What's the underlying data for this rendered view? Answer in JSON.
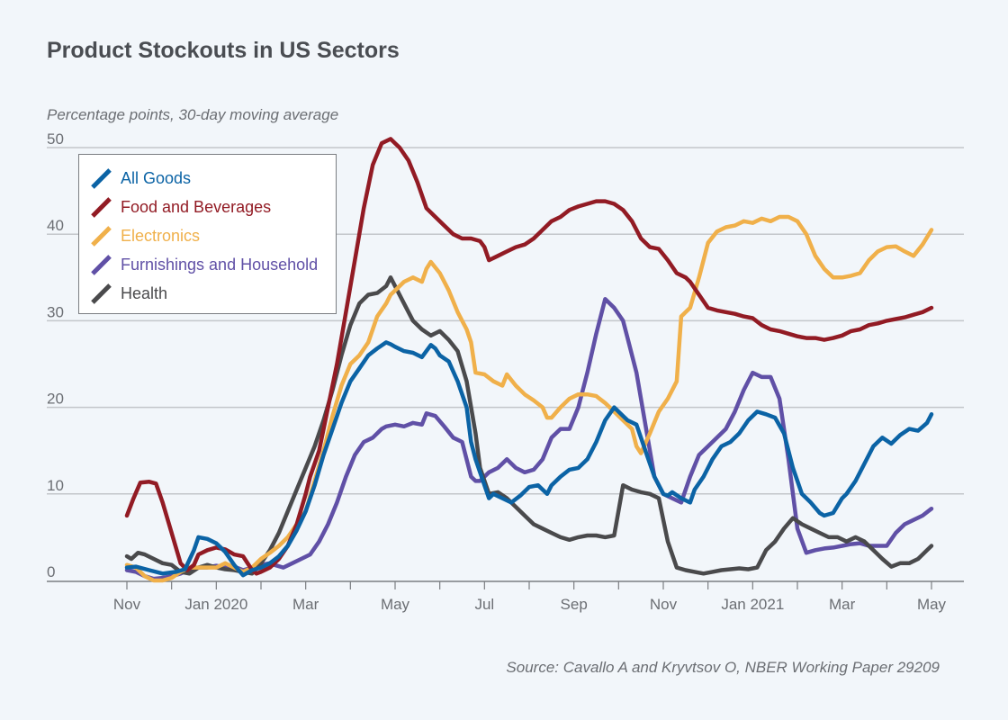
{
  "chart_data": {
    "type": "line",
    "title": "Product Stockouts in US Sectors",
    "subtitle": "Percentage points, 30-day moving average",
    "source": "Source: Cavallo A and Kryvtsov O, NBER Working Paper 29209",
    "xlabel": "",
    "ylabel": "Percentage points",
    "x_unit": "months since Nov 2019",
    "xlim": [
      0,
      18
    ],
    "ylim": [
      0,
      50
    ],
    "yticks": [
      0,
      10,
      20,
      30,
      40,
      50
    ],
    "xtick_labels": [
      {
        "x": 0,
        "label": "Nov"
      },
      {
        "x": 2,
        "label": "Jan 2020"
      },
      {
        "x": 4,
        "label": "Mar"
      },
      {
        "x": 6,
        "label": "May"
      },
      {
        "x": 8,
        "label": "Jul"
      },
      {
        "x": 10,
        "label": "Sep"
      },
      {
        "x": 12,
        "label": "Nov"
      },
      {
        "x": 14,
        "label": "Jan 2021"
      },
      {
        "x": 16,
        "label": "Mar"
      },
      {
        "x": 18,
        "label": "May"
      }
    ],
    "grid": true,
    "legend_position": "top-left",
    "series": [
      {
        "name": "All Goods",
        "color": "#0b63a5",
        "x": [
          0,
          0.2,
          0.5,
          0.8,
          1.1,
          1.3,
          1.5,
          1.6,
          1.8,
          2.0,
          2.2,
          2.4,
          2.6,
          2.7,
          2.8,
          3.0,
          3.2,
          3.4,
          3.6,
          3.8,
          4.0,
          4.2,
          4.4,
          4.6,
          4.8,
          5.0,
          5.2,
          5.4,
          5.6,
          5.8,
          5.9,
          6.0,
          6.2,
          6.4,
          6.6,
          6.8,
          6.9,
          7.0,
          7.2,
          7.4,
          7.6,
          7.7,
          7.8,
          8.0,
          8.1,
          8.2,
          8.4,
          8.6,
          8.8,
          9.0,
          9.2,
          9.4,
          9.5,
          9.7,
          9.9,
          10.1,
          10.3,
          10.5,
          10.7,
          10.9,
          11.1,
          11.2,
          11.4,
          11.6,
          11.8,
          12.0,
          12.1,
          12.2,
          12.4,
          12.6,
          12.7,
          12.9,
          13.1,
          13.3,
          13.5,
          13.7,
          13.9,
          14.1,
          14.3,
          14.5,
          14.7,
          14.9,
          15.1,
          15.3,
          15.5,
          15.6,
          15.8,
          16.0,
          16.1,
          16.3,
          16.5,
          16.7,
          16.9,
          17.1,
          17.3,
          17.5,
          17.7,
          17.9,
          18.0
        ],
        "values": [
          1.5,
          1.6,
          1.2,
          0.8,
          1.0,
          1.3,
          3.5,
          5.0,
          4.8,
          4.3,
          3.3,
          1.8,
          0.6,
          0.9,
          1.2,
          1.5,
          2.0,
          2.8,
          4.0,
          5.8,
          8.0,
          11.0,
          14.5,
          17.5,
          20.5,
          23.0,
          24.5,
          26.0,
          26.8,
          27.5,
          27.3,
          27.0,
          26.5,
          26.3,
          25.8,
          27.2,
          26.8,
          26.0,
          25.3,
          23.0,
          20.0,
          16.0,
          14.0,
          11.0,
          9.5,
          10.0,
          9.5,
          9.0,
          9.8,
          10.8,
          11.0,
          10.0,
          11.0,
          12.0,
          12.8,
          13.0,
          14.0,
          16.0,
          18.5,
          20.0,
          19.0,
          18.5,
          18.0,
          15.0,
          12.0,
          10.0,
          9.8,
          10.2,
          9.5,
          9.0,
          10.5,
          12.0,
          14.0,
          15.5,
          16.0,
          17.0,
          18.5,
          19.5,
          19.2,
          18.8,
          17.0,
          13.0,
          10.0,
          9.0,
          7.8,
          7.5,
          7.8,
          9.5,
          10.0,
          11.5,
          13.5,
          15.5,
          16.5,
          15.8,
          16.8,
          17.5,
          17.3,
          18.2,
          19.2
        ]
      },
      {
        "name": "Food and Beverages",
        "color": "#921b24",
        "x": [
          0,
          0.15,
          0.3,
          0.5,
          0.65,
          0.8,
          1.0,
          1.2,
          1.35,
          1.5,
          1.6,
          1.8,
          2.0,
          2.2,
          2.4,
          2.6,
          2.8,
          2.9,
          3.0,
          3.2,
          3.4,
          3.6,
          3.8,
          4.0,
          4.1,
          4.3,
          4.5,
          4.7,
          4.9,
          5.1,
          5.3,
          5.5,
          5.7,
          5.9,
          6.0,
          6.1,
          6.3,
          6.5,
          6.7,
          6.9,
          7.1,
          7.3,
          7.5,
          7.7,
          7.9,
          8.0,
          8.1,
          8.3,
          8.5,
          8.7,
          8.9,
          9.1,
          9.3,
          9.5,
          9.7,
          9.9,
          10.1,
          10.3,
          10.5,
          10.7,
          10.9,
          11.1,
          11.3,
          11.5,
          11.7,
          11.9,
          12.1,
          12.3,
          12.5,
          12.6,
          12.8,
          13.0,
          13.2,
          13.4,
          13.6,
          13.8,
          14.0,
          14.2,
          14.4,
          14.6,
          14.8,
          15.0,
          15.2,
          15.4,
          15.6,
          15.8,
          16.0,
          16.2,
          16.4,
          16.6,
          16.8,
          17.0,
          17.2,
          17.4,
          17.6,
          17.8,
          18.0
        ],
        "values": [
          7.5,
          9.5,
          11.3,
          11.4,
          11.2,
          9.0,
          5.5,
          2.0,
          1.2,
          1.8,
          3.0,
          3.5,
          3.8,
          3.6,
          3.0,
          2.8,
          1.2,
          0.8,
          1.0,
          1.5,
          2.5,
          4.0,
          6.5,
          10.0,
          12.0,
          15.0,
          20.0,
          25.0,
          31.0,
          37.0,
          43.0,
          48.0,
          50.5,
          51.0,
          50.5,
          50.0,
          48.5,
          46.0,
          43.0,
          42.0,
          41.0,
          40.0,
          39.5,
          39.5,
          39.2,
          38.5,
          37.0,
          37.5,
          38.0,
          38.5,
          38.8,
          39.5,
          40.5,
          41.5,
          42.0,
          42.8,
          43.2,
          43.5,
          43.8,
          43.8,
          43.5,
          42.8,
          41.5,
          39.5,
          38.5,
          38.3,
          37.0,
          35.5,
          35.0,
          34.5,
          33.0,
          31.5,
          31.2,
          31.0,
          30.8,
          30.5,
          30.3,
          29.5,
          29.0,
          28.8,
          28.5,
          28.2,
          28.0,
          28.0,
          27.8,
          28.0,
          28.3,
          28.8,
          29.0,
          29.5,
          29.7,
          30.0,
          30.2,
          30.4,
          30.7,
          31.0,
          31.5
        ]
      },
      {
        "name": "Electronics",
        "color": "#f0b04a",
        "x": [
          0,
          0.2,
          0.4,
          0.6,
          0.8,
          1.0,
          1.2,
          1.4,
          1.6,
          1.8,
          2.0,
          2.2,
          2.4,
          2.6,
          2.8,
          3.0,
          3.2,
          3.4,
          3.6,
          3.8,
          4.0,
          4.2,
          4.4,
          4.6,
          4.8,
          5.0,
          5.2,
          5.4,
          5.6,
          5.8,
          5.9,
          6.0,
          6.2,
          6.4,
          6.6,
          6.7,
          6.8,
          7.0,
          7.2,
          7.4,
          7.6,
          7.7,
          7.8,
          8.0,
          8.2,
          8.4,
          8.5,
          8.7,
          8.9,
          9.1,
          9.3,
          9.4,
          9.5,
          9.7,
          9.9,
          10.1,
          10.3,
          10.5,
          10.7,
          10.9,
          11.1,
          11.3,
          11.4,
          11.5,
          11.7,
          11.9,
          12.1,
          12.3,
          12.4,
          12.6,
          12.8,
          13.0,
          13.2,
          13.4,
          13.6,
          13.8,
          14.0,
          14.2,
          14.4,
          14.6,
          14.8,
          15.0,
          15.2,
          15.4,
          15.6,
          15.8,
          16.0,
          16.2,
          16.4,
          16.6,
          16.8,
          17.0,
          17.2,
          17.4,
          17.6,
          17.8,
          18.0
        ],
        "values": [
          1.8,
          1.5,
          0.5,
          0.0,
          0.0,
          0.3,
          1.0,
          1.5,
          1.5,
          1.5,
          1.5,
          2.0,
          1.5,
          1.0,
          1.5,
          2.5,
          3.2,
          4.0,
          5.0,
          6.5,
          8.0,
          11.5,
          15.0,
          19.0,
          22.5,
          25.0,
          26.0,
          27.5,
          30.5,
          32.0,
          33.0,
          33.5,
          34.5,
          35.0,
          34.5,
          36.0,
          36.8,
          35.5,
          33.5,
          31.0,
          29.0,
          27.5,
          24.0,
          23.8,
          23.0,
          22.5,
          23.8,
          22.5,
          21.5,
          20.8,
          20.0,
          18.8,
          18.8,
          20.0,
          21.0,
          21.5,
          21.5,
          21.3,
          20.5,
          19.5,
          18.5,
          17.5,
          15.5,
          14.7,
          17.0,
          19.5,
          21.0,
          23.0,
          30.5,
          31.5,
          35.0,
          39.0,
          40.3,
          40.8,
          41.0,
          41.5,
          41.3,
          41.8,
          41.5,
          42.0,
          42.0,
          41.5,
          40.0,
          37.5,
          36.0,
          35.0,
          35.0,
          35.2,
          35.5,
          37.0,
          38.0,
          38.5,
          38.6,
          38.0,
          37.5,
          38.8,
          40.5
        ]
      },
      {
        "name": "Furnishings and Household",
        "color": "#6050a6",
        "x": [
          0,
          0.2,
          0.4,
          0.6,
          0.8,
          1.0,
          1.2,
          1.4,
          1.6,
          1.8,
          2.0,
          2.2,
          2.4,
          2.6,
          2.8,
          3.0,
          3.2,
          3.3,
          3.5,
          3.7,
          3.9,
          4.1,
          4.3,
          4.5,
          4.7,
          4.9,
          5.1,
          5.3,
          5.5,
          5.7,
          5.8,
          6.0,
          6.2,
          6.4,
          6.6,
          6.7,
          6.9,
          7.1,
          7.3,
          7.5,
          7.7,
          7.8,
          7.9,
          8.1,
          8.3,
          8.5,
          8.7,
          8.9,
          9.1,
          9.3,
          9.5,
          9.7,
          9.9,
          10.1,
          10.3,
          10.5,
          10.7,
          10.9,
          11.1,
          11.2,
          11.4,
          11.6,
          11.8,
          12.0,
          12.2,
          12.4,
          12.6,
          12.8,
          13.0,
          13.2,
          13.4,
          13.6,
          13.8,
          14.0,
          14.2,
          14.4,
          14.6,
          14.8,
          15.0,
          15.2,
          15.4,
          15.6,
          15.8,
          16.0,
          16.2,
          16.4,
          16.6,
          16.8,
          17.0,
          17.2,
          17.4,
          17.6,
          17.8,
          18.0
        ],
        "values": [
          1.2,
          1.0,
          0.5,
          0.2,
          0.3,
          0.5,
          0.8,
          1.3,
          1.5,
          1.5,
          1.7,
          1.5,
          1.6,
          1.2,
          1.5,
          1.8,
          2.0,
          1.8,
          1.5,
          2.0,
          2.5,
          3.0,
          4.5,
          6.5,
          9.0,
          12.0,
          14.5,
          16.0,
          16.5,
          17.5,
          17.8,
          18.0,
          17.8,
          18.2,
          18.0,
          19.3,
          19.0,
          17.8,
          16.5,
          16.0,
          12.0,
          11.5,
          11.5,
          12.5,
          13.0,
          14.0,
          13.0,
          12.5,
          12.8,
          14.0,
          16.5,
          17.5,
          17.5,
          20.0,
          24.0,
          28.5,
          32.5,
          31.5,
          30.0,
          28.0,
          24.0,
          18.0,
          12.0,
          10.0,
          9.5,
          9.0,
          12.0,
          14.5,
          15.5,
          16.5,
          17.5,
          19.5,
          22.0,
          24.0,
          23.5,
          23.5,
          21.0,
          14.0,
          6.0,
          3.2,
          3.5,
          3.7,
          3.8,
          4.0,
          4.2,
          4.3,
          4.0,
          4.0,
          4.0,
          5.5,
          6.5,
          7.0,
          7.5,
          8.3
        ]
      },
      {
        "name": "Health",
        "color": "#4a4a4c",
        "x": [
          0,
          0.1,
          0.25,
          0.4,
          0.6,
          0.8,
          1.0,
          1.2,
          1.4,
          1.6,
          1.8,
          2.0,
          2.2,
          2.4,
          2.6,
          2.8,
          3.0,
          3.2,
          3.4,
          3.6,
          3.8,
          4.0,
          4.2,
          4.4,
          4.6,
          4.8,
          5.0,
          5.2,
          5.4,
          5.6,
          5.8,
          5.9,
          6.0,
          6.2,
          6.4,
          6.6,
          6.8,
          7.0,
          7.2,
          7.4,
          7.6,
          7.8,
          7.9,
          8.1,
          8.3,
          8.5,
          8.7,
          8.9,
          9.1,
          9.3,
          9.5,
          9.7,
          9.9,
          10.1,
          10.3,
          10.5,
          10.7,
          10.9,
          11.1,
          11.3,
          11.5,
          11.7,
          11.9,
          12.1,
          12.3,
          12.5,
          12.7,
          12.9,
          13.1,
          13.3,
          13.5,
          13.7,
          13.9,
          14.1,
          14.3,
          14.5,
          14.7,
          14.9,
          15.1,
          15.3,
          15.5,
          15.7,
          15.9,
          16.1,
          16.3,
          16.5,
          16.7,
          16.9,
          17.1,
          17.3,
          17.5,
          17.7,
          17.9,
          18.0
        ],
        "values": [
          2.8,
          2.5,
          3.2,
          3.0,
          2.5,
          2.0,
          1.8,
          1.0,
          0.8,
          1.5,
          1.8,
          1.5,
          1.3,
          1.2,
          1.0,
          0.8,
          2.0,
          3.5,
          5.5,
          8.0,
          10.5,
          13.0,
          15.5,
          18.5,
          22.0,
          26.0,
          29.5,
          32.0,
          33.0,
          33.2,
          34.0,
          35.0,
          34.0,
          32.0,
          30.0,
          29.0,
          28.3,
          28.8,
          27.8,
          26.5,
          23.0,
          17.0,
          13.0,
          10.0,
          10.2,
          9.5,
          8.5,
          7.5,
          6.5,
          6.0,
          5.5,
          5.0,
          4.7,
          5.0,
          5.2,
          5.2,
          5.0,
          5.2,
          11.0,
          10.5,
          10.2,
          10.0,
          9.5,
          4.5,
          1.5,
          1.2,
          1.0,
          0.8,
          1.0,
          1.2,
          1.3,
          1.4,
          1.3,
          1.5,
          3.5,
          4.5,
          6.0,
          7.2,
          6.5,
          6.0,
          5.5,
          5.0,
          5.0,
          4.5,
          5.0,
          4.5,
          3.5,
          2.5,
          1.6,
          2.0,
          2.0,
          2.5,
          3.5,
          4.0
        ]
      }
    ]
  }
}
